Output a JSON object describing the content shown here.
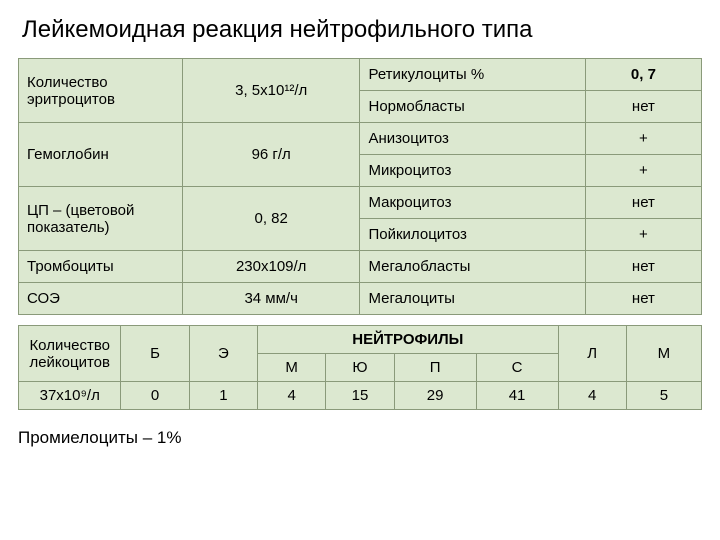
{
  "title": "Лейкемоидная реакция нейтрофильного типа",
  "table1": {
    "col_widths": [
      "24%",
      "26%",
      "33%",
      "17%"
    ],
    "rows": [
      {
        "param": "Количество эритроцитов",
        "rowspan_p": 2,
        "val": "3, 5х10¹²/л",
        "rowspan_v": 2,
        "morph": "Ретикулоциты %",
        "mval": "0, 7",
        "mval_bold": true
      },
      {
        "morph": "Нормобласты",
        "mval": "нет"
      },
      {
        "param": "Гемоглобин",
        "rowspan_p": 2,
        "val": "96 г/л",
        "rowspan_v": 2,
        "morph": "Анизоцитоз",
        "mval": "+"
      },
      {
        "morph": "Микроцитоз",
        "mval": "+"
      },
      {
        "param": "ЦП – (цветовой показатель)",
        "rowspan_p": 2,
        "val": "0, 82",
        "rowspan_v": 2,
        "morph": "Макроцитоз",
        "mval": "нет"
      },
      {
        "morph": "Пойкилоцитоз",
        "mval": "+"
      },
      {
        "param": "Тромбоциты",
        "rowspan_p": 1,
        "val": "230х109/л",
        "rowspan_v": 1,
        "morph": "Мегалобласты",
        "mval": "нет"
      },
      {
        "param": "СОЭ",
        "rowspan_p": 1,
        "val": "34 мм/ч",
        "rowspan_v": 1,
        "morph": "Мегалоциты",
        "mval": "нет"
      }
    ]
  },
  "table2": {
    "header_left": "Количество лейкоцитов",
    "header_group": "НЕЙТРОФИЛЫ",
    "count": "37х10⁹/л",
    "cols": [
      "Б",
      "Э",
      "М",
      "Ю",
      "П",
      "С",
      "Л",
      "М"
    ],
    "vals": [
      "0",
      "1",
      "4",
      "15",
      "29",
      "41",
      "4",
      "5"
    ]
  },
  "footnote": "Промиелоциты – 1%",
  "colors": {
    "cell_bg": "#dce8d0",
    "border": "#8a9a7a",
    "page_bg": "#ffffff",
    "text": "#000000"
  }
}
